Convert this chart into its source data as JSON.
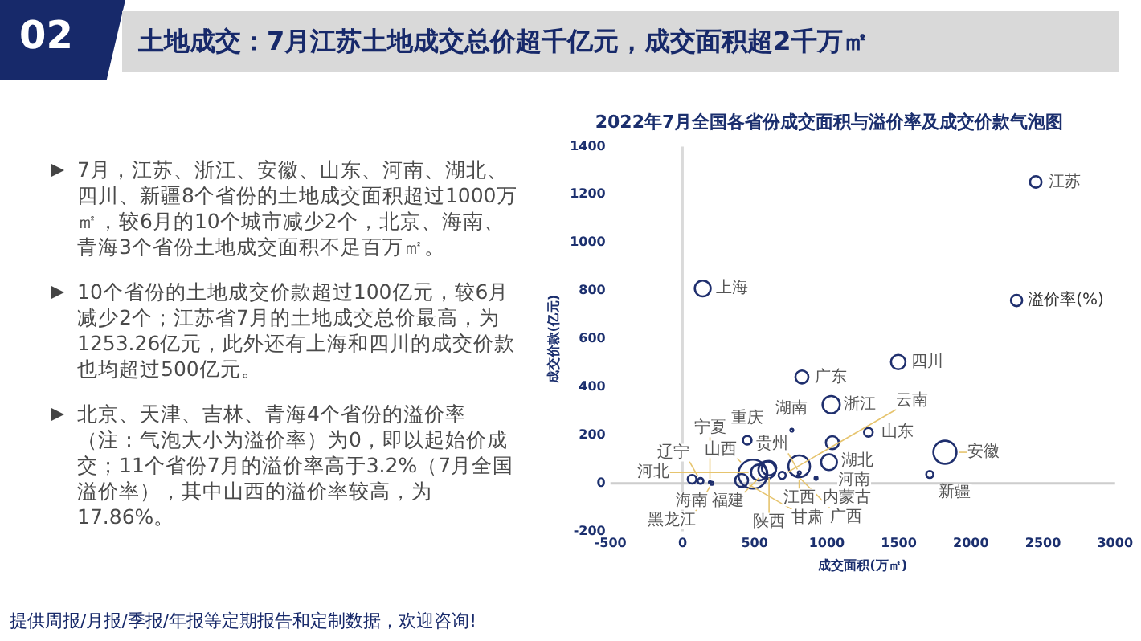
{
  "chart_data": {
    "type": "bubble",
    "title": "2022年7月全国各省份成交面积与溢价率及成交价款气泡图",
    "xlabel": "成交面积(万㎡)",
    "ylabel": "成交价款(亿元)",
    "xlim": [
      -500,
      3000
    ],
    "xticks": [
      -500,
      0,
      500,
      1000,
      1500,
      2000,
      2500,
      3000
    ],
    "ylim": [
      -200,
      1400
    ],
    "yticks": [
      -200,
      0,
      200,
      400,
      600,
      800,
      1000,
      1200,
      1400
    ],
    "grid": false,
    "legend": "right",
    "marker": "circle",
    "ref_lines": [
      {
        "axis": "x",
        "value": 0,
        "color": "#dadada"
      },
      {
        "axis": "y",
        "value": 0,
        "color": "#cdcdcd"
      }
    ],
    "series": [
      {
        "name": "溢价率(%)",
        "color": "#1f2f6e",
        "x": [
          2450,
          140,
          828,
          1496,
          1031,
          758,
          1289,
          449,
          1039,
          1820,
          1016,
          809,
          586,
          600,
          488,
          530,
          691,
          810,
          926,
          800,
          1715,
          66,
          125,
          203,
          190,
          410
        ],
        "values": [
          1253,
          810,
          442,
          504,
          327,
          221,
          212,
          179,
          169,
          129,
          88,
          71,
          56,
          63,
          38,
          45,
          33,
          44,
          21,
          30,
          37,
          17,
          10,
          0,
          5,
          12
        ],
        "sizes": [
          0.16,
          0.3,
          0.2,
          0.25,
          0.36,
          0.01,
          0.09,
          0.09,
          0.2,
          0.64,
          0.3,
          0.56,
          0.36,
          0.25,
          1,
          0.3,
          0.06,
          0.01,
          0.01,
          0.005,
          0.06,
          0.09,
          0.04,
          0.01,
          0.005,
          0.2
        ]
      }
    ],
    "annotations": [
      "02",
      "土地成交：7月江苏土地成交总价超千亿元，成交面积超2千万㎡",
      "7月，江苏、浙江、安徽、山东、河南、湖北、四川、新疆8个省份的土地成交面积超过1000万㎡，较6月的10个城市减少2个，北京、海南、青海3个省份土地成交面积不足百万㎡。",
      "10个省份的土地成交价款超过100亿元，较6月减少2个；江苏省7月的土地成交总价最高，为1253.26亿元，此外还有上海和四川的成交价款也均超过500亿元。",
      "北京、天津、吉林、青海4个省份的溢价率（注：气泡大小为溢价率）为0，即以起始价成交；11个省份7月的溢价率高于3.2%（7月全国溢价率），其中山西的溢价率较高，为17.86%。",
      "提供周报/月报/季报/年报等定期报告和定制数据，欢迎咨询!",
      {
        "text": "江苏",
        "x": 2450,
        "y": 1253
      },
      {
        "text": "上海",
        "x": 140,
        "y": 810
      },
      {
        "text": "广东",
        "x": 828,
        "y": 442
      },
      {
        "text": "四川",
        "x": 1496,
        "y": 504
      },
      {
        "text": "浙江",
        "x": 1031,
        "y": 327
      },
      {
        "text": "湖南",
        "x": 758,
        "y": 221
      },
      {
        "text": "山东",
        "x": 1289,
        "y": 212
      },
      {
        "text": "重庆",
        "x": 449,
        "y": 179
      },
      {
        "text": "湖北",
        "x": 1039,
        "y": 169
      },
      {
        "text": "安徽",
        "x": 1820,
        "y": 129
      },
      {
        "text": "河南",
        "x": 1016,
        "y": 88
      },
      {
        "text": "江西",
        "x": 809,
        "y": 71
      },
      {
        "text": "福建",
        "x": 586,
        "y": 56
      },
      {
        "text": "陕西",
        "x": 600,
        "y": 63
      },
      {
        "text": "山西",
        "x": 488,
        "y": 38
      },
      {
        "text": "河北",
        "x": 530,
        "y": 45
      },
      {
        "text": "云南",
        "x": 691,
        "y": 33
      },
      {
        "text": "贵州",
        "x": 810,
        "y": 44
      },
      {
        "text": "内蒙古",
        "x": 926,
        "y": 21
      },
      {
        "text": "广西",
        "x": 800,
        "y": 30
      },
      {
        "text": "新疆",
        "x": 1715,
        "y": 37
      },
      {
        "text": "海南",
        "x": 66,
        "y": 17
      },
      {
        "text": "辽宁",
        "x": 125,
        "y": 10
      },
      {
        "text": "黑龙江",
        "x": 203,
        "y": 0
      },
      {
        "text": "宁夏",
        "x": 190,
        "y": 5
      },
      {
        "text": "甘肃",
        "x": 410,
        "y": 12
      }
    ]
  }
}
